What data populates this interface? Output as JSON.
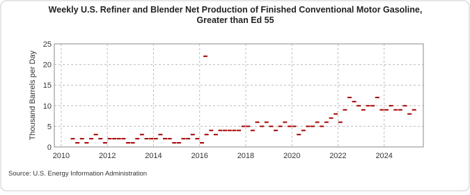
{
  "chart_data": {
    "type": "scatter",
    "title": "Weekly U.S. Refiner and Blender Net Production of Finished Conventional Motor Gasoline, Greater than Ed 55",
    "y_label": "Thousand Barrels per Day",
    "source": "Source: U.S. Energy Information Administration",
    "x": [
      2010.5,
      2010.7,
      2010.9,
      2011.1,
      2011.3,
      2011.5,
      2011.7,
      2011.9,
      2012.1,
      2012.3,
      2012.5,
      2012.7,
      2012.9,
      2013.1,
      2013.3,
      2013.5,
      2013.7,
      2013.9,
      2014.1,
      2014.3,
      2014.5,
      2014.7,
      2014.9,
      2015.1,
      2015.3,
      2015.5,
      2015.7,
      2015.9,
      2016.1,
      2016.25,
      2016.3,
      2016.5,
      2016.7,
      2016.9,
      2017.1,
      2017.3,
      2017.5,
      2017.7,
      2017.9,
      2018.1,
      2018.3,
      2018.5,
      2018.7,
      2018.9,
      2019.1,
      2019.3,
      2019.5,
      2019.7,
      2019.9,
      2020.1,
      2020.3,
      2020.5,
      2020.7,
      2020.9,
      2021.1,
      2021.3,
      2021.5,
      2021.7,
      2021.9,
      2022.1,
      2022.3,
      2022.5,
      2022.7,
      2022.9,
      2023.1,
      2023.3,
      2023.5,
      2023.7,
      2023.9,
      2024.1,
      2024.3,
      2024.5,
      2024.7,
      2024.9,
      2025.1,
      2025.3
    ],
    "series": [
      {
        "name": "Production",
        "color": "#a50000",
        "values": [
          2,
          1,
          2,
          1,
          2,
          3,
          2,
          1,
          2,
          2,
          2,
          2,
          1,
          1,
          2,
          3,
          2,
          2,
          2,
          3,
          2,
          2,
          1,
          1,
          2,
          2,
          3,
          2,
          1,
          22,
          3,
          4,
          3,
          4,
          4,
          4,
          4,
          4,
          5,
          5,
          4,
          6,
          5,
          6,
          5,
          4,
          5,
          6,
          5,
          5,
          3,
          4,
          5,
          5,
          6,
          5,
          6,
          7,
          8,
          6,
          9,
          12,
          11,
          10,
          9,
          10,
          10,
          12,
          9,
          9,
          10,
          9,
          9,
          10,
          8,
          9
        ]
      }
    ],
    "xlim": [
      2009.7,
      2025.7
    ],
    "xticks": [
      2010,
      2012,
      2014,
      2016,
      2018,
      2020,
      2022,
      2024
    ],
    "ylim": [
      0,
      25
    ],
    "yticks": [
      0,
      5,
      10,
      15,
      20,
      25
    ],
    "grid": true
  }
}
